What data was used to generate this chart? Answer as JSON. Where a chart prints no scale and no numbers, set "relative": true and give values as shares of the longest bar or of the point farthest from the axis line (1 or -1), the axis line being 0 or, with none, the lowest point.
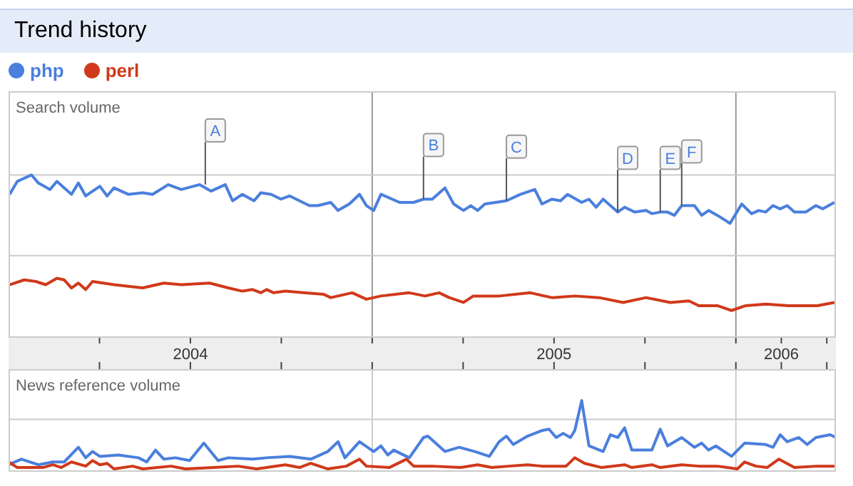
{
  "chart_data": [
    {
      "type": "line",
      "title": "Trend history",
      "ylabel": "Search volume",
      "relative": true,
      "legend": "top left",
      "xlim": [
        2004,
        2006.275
      ],
      "xticks": [
        {
          "value": 2004.25,
          "label": null
        },
        {
          "value": 2004.5,
          "label": "2004"
        },
        {
          "value": 2004.75,
          "label": null
        },
        {
          "value": 2005,
          "label": null
        },
        {
          "value": 2005.25,
          "label": null
        },
        {
          "value": 2005.5,
          "label": "2005"
        },
        {
          "value": 2005.75,
          "label": null
        },
        {
          "value": 2006,
          "label": null
        },
        {
          "value": 2006.125,
          "label": "2006"
        },
        {
          "value": 2006.25,
          "label": null
        }
      ],
      "ref_lines": [
        {
          "axis": "x",
          "value": 2005,
          "color": "#9a9a9a"
        },
        {
          "axis": "x",
          "value": 2006,
          "color": "#9a9a9a"
        },
        {
          "axis": "y",
          "value": 1,
          "color": "#cccccc"
        },
        {
          "axis": "y",
          "value": 0.5,
          "color": "#cccccc"
        }
      ],
      "annotations": [
        {
          "text": "A",
          "x": 2004.541,
          "y": 0.94
        },
        {
          "text": "B",
          "x": 2005.141,
          "y": 0.85
        },
        {
          "text": "C",
          "x": 2005.369,
          "y": 0.84
        },
        {
          "text": "D",
          "x": 2005.675,
          "y": 0.77
        },
        {
          "text": "E",
          "x": 2005.792,
          "y": 0.77
        },
        {
          "text": "F",
          "x": 2005.851,
          "y": 0.81
        }
      ],
      "series": [
        {
          "name": "php",
          "color": "#4a7fdd",
          "x": [
            2004.003,
            2004.024,
            2004.063,
            2004.082,
            2004.114,
            2004.133,
            2004.173,
            2004.192,
            2004.212,
            2004.251,
            2004.271,
            2004.29,
            2004.329,
            2004.369,
            2004.396,
            2004.439,
            2004.475,
            2004.525,
            2004.557,
            2004.596,
            2004.616,
            2004.643,
            2004.675,
            2004.694,
            2004.722,
            2004.749,
            2004.773,
            2004.827,
            2004.851,
            2004.886,
            2004.906,
            2004.937,
            2004.965,
            2004.984,
            2005.004,
            2005.024,
            2005.075,
            2005.114,
            2005.141,
            2005.165,
            2005.2,
            2005.224,
            2005.251,
            2005.271,
            2005.29,
            2005.31,
            2005.369,
            2005.408,
            2005.447,
            2005.467,
            2005.494,
            2005.518,
            2005.537,
            2005.576,
            2005.596,
            2005.616,
            2005.635,
            2005.675,
            2005.694,
            2005.722,
            2005.753,
            2005.769,
            2005.792,
            2005.812,
            2005.831,
            2005.851,
            2005.886,
            2005.906,
            2005.925,
            2005.949,
            2005.984,
            2006.016,
            2006.043,
            2006.063,
            2006.082,
            2006.102,
            2006.122,
            2006.141,
            2006.161,
            2006.192,
            2006.22,
            2006.239,
            2006.271
          ],
          "values": [
            0.88,
            0.96,
            1,
            0.95,
            0.91,
            0.96,
            0.88,
            0.95,
            0.87,
            0.93,
            0.87,
            0.92,
            0.88,
            0.89,
            0.88,
            0.94,
            0.91,
            0.94,
            0.9,
            0.94,
            0.84,
            0.88,
            0.84,
            0.89,
            0.88,
            0.85,
            0.87,
            0.81,
            0.81,
            0.83,
            0.78,
            0.82,
            0.88,
            0.81,
            0.78,
            0.88,
            0.83,
            0.83,
            0.85,
            0.85,
            0.92,
            0.82,
            0.78,
            0.81,
            0.78,
            0.82,
            0.84,
            0.88,
            0.91,
            0.82,
            0.85,
            0.84,
            0.88,
            0.83,
            0.85,
            0.8,
            0.85,
            0.77,
            0.8,
            0.77,
            0.78,
            0.76,
            0.77,
            0.77,
            0.75,
            0.81,
            0.81,
            0.75,
            0.78,
            0.75,
            0.7,
            0.82,
            0.76,
            0.78,
            0.77,
            0.81,
            0.79,
            0.81,
            0.77,
            0.77,
            0.81,
            0.79,
            0.83
          ]
        },
        {
          "name": "perl",
          "color": "#d0391a",
          "x": [
            2004.003,
            2004.043,
            2004.075,
            2004.102,
            2004.133,
            2004.153,
            2004.173,
            2004.192,
            2004.212,
            2004.231,
            2004.29,
            2004.329,
            2004.369,
            2004.427,
            2004.475,
            2004.553,
            2004.604,
            2004.643,
            2004.671,
            2004.694,
            2004.71,
            2004.729,
            2004.761,
            2004.812,
            2004.867,
            2004.886,
            2004.945,
            2004.984,
            2005.024,
            2005.102,
            2005.145,
            2005.184,
            2005.212,
            2005.251,
            2005.278,
            2005.349,
            2005.435,
            2005.494,
            2005.557,
            2005.624,
            2005.69,
            2005.753,
            2005.82,
            2005.871,
            2005.898,
            2005.949,
            2005.988,
            2006.027,
            2006.082,
            2006.145,
            2006.184,
            2006.224,
            2006.271
          ],
          "values": [
            0.32,
            0.35,
            0.34,
            0.32,
            0.36,
            0.35,
            0.3,
            0.33,
            0.29,
            0.34,
            0.32,
            0.31,
            0.3,
            0.33,
            0.32,
            0.33,
            0.3,
            0.28,
            0.29,
            0.27,
            0.29,
            0.27,
            0.28,
            0.27,
            0.26,
            0.24,
            0.27,
            0.23,
            0.25,
            0.27,
            0.25,
            0.27,
            0.24,
            0.21,
            0.25,
            0.25,
            0.27,
            0.24,
            0.25,
            0.24,
            0.21,
            0.24,
            0.21,
            0.22,
            0.19,
            0.19,
            0.16,
            0.19,
            0.2,
            0.19,
            0.19,
            0.19,
            0.21
          ]
        }
      ]
    },
    {
      "type": "line",
      "ylabel": "News reference volume",
      "relative": true,
      "tick_labels": false,
      "xlim": [
        2004,
        2006.275
      ],
      "ref_lines": [
        {
          "axis": "x",
          "value": 2005,
          "color": "#cccccc"
        },
        {
          "axis": "x",
          "value": 2006,
          "color": "#cccccc"
        },
        {
          "axis": "y",
          "value": 0.73,
          "color": "#cccccc"
        }
      ],
      "series": [
        {
          "color": "#4a7fdd",
          "x": [
            2004,
            2004.035,
            2004.082,
            2004.122,
            2004.153,
            2004.192,
            2004.212,
            2004.231,
            2004.251,
            2004.302,
            2004.357,
            2004.38,
            2004.404,
            2004.427,
            2004.459,
            2004.498,
            2004.537,
            2004.576,
            2004.604,
            2004.671,
            2004.71,
            2004.773,
            2004.831,
            2004.878,
            2004.906,
            2004.925,
            2004.965,
            2005.004,
            2005.024,
            2005.043,
            2005.059,
            2005.102,
            2005.141,
            2005.153,
            2005.2,
            2005.239,
            2005.282,
            2005.322,
            2005.349,
            2005.369,
            2005.388,
            2005.427,
            2005.467,
            2005.486,
            2005.506,
            2005.525,
            2005.545,
            2005.557,
            2005.576,
            2005.596,
            2005.635,
            2005.655,
            2005.675,
            2005.694,
            2005.714,
            2005.769,
            2005.792,
            2005.812,
            2005.851,
            2005.886,
            2005.906,
            2005.925,
            2005.945,
            2005.988,
            2006.024,
            2006.082,
            2006.102,
            2006.122,
            2006.141,
            2006.173,
            2006.196,
            2006.22,
            2006.259,
            2006.275
          ],
          "values": [
            0.08,
            0.16,
            0.08,
            0.12,
            0.12,
            0.33,
            0.18,
            0.27,
            0.2,
            0.22,
            0.18,
            0.12,
            0.29,
            0.16,
            0.18,
            0.14,
            0.39,
            0.14,
            0.18,
            0.16,
            0.18,
            0.2,
            0.16,
            0.27,
            0.41,
            0.18,
            0.41,
            0.27,
            0.35,
            0.22,
            0.29,
            0.18,
            0.47,
            0.49,
            0.27,
            0.33,
            0.27,
            0.2,
            0.41,
            0.49,
            0.37,
            0.49,
            0.57,
            0.59,
            0.47,
            0.53,
            0.47,
            0.57,
            1,
            0.35,
            0.27,
            0.51,
            0.47,
            0.61,
            0.29,
            0.29,
            0.59,
            0.35,
            0.47,
            0.33,
            0.39,
            0.29,
            0.35,
            0.2,
            0.39,
            0.37,
            0.33,
            0.51,
            0.41,
            0.47,
            0.37,
            0.47,
            0.51,
            0.47
          ]
        },
        {
          "color": "#d0391a",
          "x": [
            2004,
            2004.024,
            2004.094,
            2004.122,
            2004.145,
            2004.173,
            2004.212,
            2004.231,
            2004.251,
            2004.271,
            2004.29,
            2004.341,
            2004.369,
            2004.447,
            2004.486,
            2004.565,
            2004.631,
            2004.682,
            2004.761,
            2004.8,
            2004.831,
            2004.878,
            2004.929,
            2004.965,
            2004.984,
            2005.047,
            2005.094,
            2005.114,
            2005.145,
            2005.165,
            2005.243,
            2005.29,
            2005.329,
            2005.376,
            2005.427,
            2005.467,
            2005.533,
            2005.557,
            2005.584,
            2005.631,
            2005.694,
            2005.714,
            2005.769,
            2005.792,
            2005.851,
            2005.898,
            2005.949,
            2006.004,
            2006.024,
            2006.055,
            2006.086,
            2006.118,
            2006.161,
            2006.224,
            2006.271
          ],
          "values": [
            0.12,
            0.04,
            0.04,
            0.08,
            0.04,
            0.12,
            0.06,
            0.14,
            0.08,
            0.1,
            0.02,
            0.06,
            0.02,
            0.06,
            0.02,
            0.04,
            0.06,
            0.02,
            0.08,
            0.04,
            0.1,
            0.02,
            0.06,
            0.16,
            0.06,
            0.04,
            0.16,
            0.06,
            0.06,
            0.06,
            0.04,
            0.08,
            0.04,
            0.06,
            0.08,
            0.06,
            0.06,
            0.18,
            0.1,
            0.04,
            0.08,
            0.04,
            0.08,
            0.04,
            0.08,
            0.06,
            0.06,
            0.02,
            0.12,
            0.06,
            0.04,
            0.16,
            0.04,
            0.06,
            0.06
          ]
        }
      ]
    }
  ]
}
